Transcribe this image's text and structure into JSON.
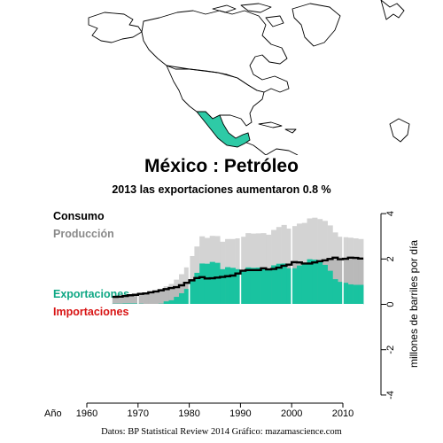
{
  "title": "México :  Petróleo",
  "subtitle": "2013 las exportaciones aumentaron 0.8 %",
  "footer": "Datos: BP Statistical Review 2014   Gráfico: mazamascience.com",
  "colors": {
    "produccion": "#d3d3d3",
    "consumo_fill": "#b9b9b9",
    "exportaciones": "#19c3a0",
    "importaciones": "#d81414",
    "consumo_line": "#000000",
    "mexico": "#2ecaa6"
  },
  "chart_data": {
    "type": "area",
    "xlabel": "Año",
    "ylabel": "millones de barriles por día",
    "xlim": [
      1960,
      2013
    ],
    "ylim": [
      -4,
      4
    ],
    "x_ticks": [
      1960,
      1970,
      1980,
      1990,
      2000,
      2010
    ],
    "y_ticks": [
      -4,
      -2,
      0,
      2,
      4
    ],
    "legend_placement": "left",
    "legend": [
      "Consumo",
      "Producción",
      "Exportaciones",
      "Importaciones"
    ],
    "years": [
      1965,
      1966,
      1967,
      1968,
      1969,
      1970,
      1971,
      1972,
      1973,
      1974,
      1975,
      1976,
      1977,
      1978,
      1979,
      1980,
      1981,
      1982,
      1983,
      1984,
      1985,
      1986,
      1987,
      1988,
      1989,
      1990,
      1991,
      1992,
      1993,
      1994,
      1995,
      1996,
      1997,
      1998,
      1999,
      2000,
      2001,
      2002,
      2003,
      2004,
      2005,
      2006,
      2007,
      2008,
      2009,
      2010,
      2011,
      2012,
      2013
    ],
    "series": [
      {
        "name": "Producción",
        "values": [
          0.36,
          0.37,
          0.41,
          0.44,
          0.46,
          0.49,
          0.49,
          0.51,
          0.54,
          0.65,
          0.8,
          0.9,
          1.09,
          1.33,
          1.63,
          2.13,
          2.55,
          3.0,
          2.93,
          3.02,
          3.01,
          2.76,
          2.88,
          2.88,
          2.91,
          2.98,
          3.14,
          3.12,
          3.13,
          3.14,
          3.07,
          3.28,
          3.41,
          3.5,
          3.34,
          3.45,
          3.56,
          3.59,
          3.79,
          3.82,
          3.76,
          3.68,
          3.48,
          3.17,
          2.98,
          2.96,
          2.94,
          2.91,
          2.88
        ]
      },
      {
        "name": "Consumo",
        "values": [
          0.33,
          0.34,
          0.37,
          0.4,
          0.42,
          0.46,
          0.48,
          0.53,
          0.57,
          0.62,
          0.67,
          0.72,
          0.76,
          0.84,
          0.95,
          1.06,
          1.16,
          1.2,
          1.14,
          1.15,
          1.18,
          1.21,
          1.24,
          1.27,
          1.36,
          1.48,
          1.51,
          1.51,
          1.51,
          1.59,
          1.54,
          1.56,
          1.62,
          1.7,
          1.75,
          1.86,
          1.85,
          1.8,
          1.8,
          1.85,
          1.9,
          1.94,
          2.0,
          2.06,
          1.99,
          2.01,
          2.06,
          2.05,
          2.02
        ]
      },
      {
        "name": "Exportaciones",
        "values": [
          0.03,
          0.03,
          0.04,
          0.04,
          0.04,
          0.03,
          0.01,
          0.0,
          0.0,
          0.03,
          0.13,
          0.18,
          0.33,
          0.49,
          0.68,
          1.07,
          1.39,
          1.8,
          1.79,
          1.87,
          1.83,
          1.55,
          1.64,
          1.61,
          1.55,
          1.5,
          1.63,
          1.61,
          1.62,
          1.55,
          1.53,
          1.72,
          1.79,
          1.8,
          1.59,
          1.59,
          1.71,
          1.79,
          1.99,
          1.97,
          1.86,
          1.74,
          1.48,
          1.11,
          0.99,
          0.95,
          0.88,
          0.86,
          0.86
        ]
      },
      {
        "name": "Importaciones",
        "values": [
          0,
          0,
          0,
          0,
          0,
          0,
          0,
          0,
          0,
          0,
          0,
          0,
          0,
          0,
          0,
          0,
          0,
          0,
          0,
          0,
          0,
          0,
          0,
          0,
          0,
          0,
          0,
          0,
          0,
          0,
          0,
          0,
          0,
          0,
          0,
          0,
          0,
          0,
          0,
          0,
          0,
          0,
          0,
          0,
          0,
          0,
          0,
          0,
          0
        ]
      }
    ]
  }
}
